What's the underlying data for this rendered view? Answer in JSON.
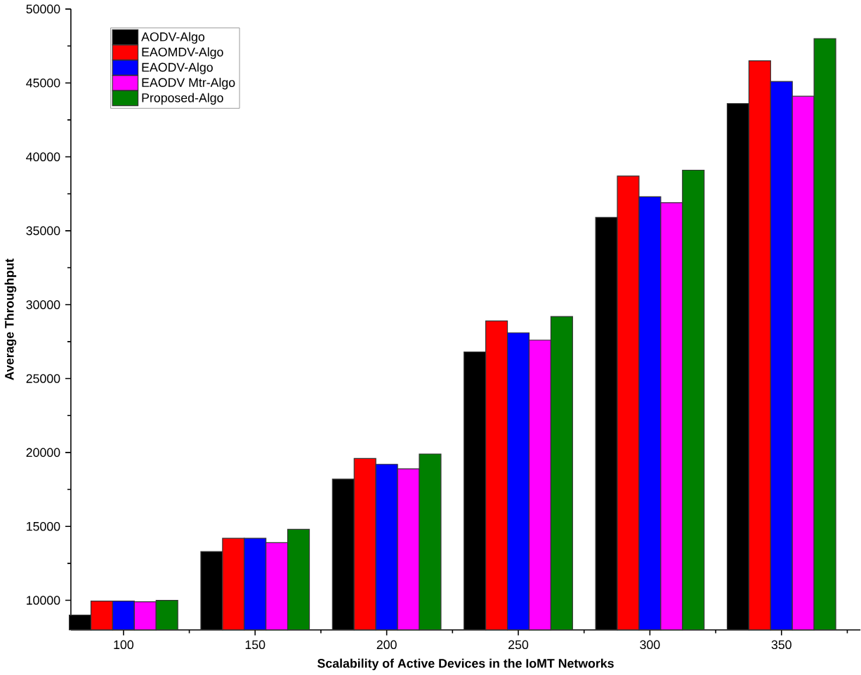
{
  "chart_data": {
    "type": "bar",
    "xlabel": "Scalability of Active Devices in the IoMT Networks",
    "ylabel": "Average Throughput",
    "categories": [
      "100",
      "150",
      "200",
      "250",
      "300",
      "350"
    ],
    "series": [
      {
        "name": "AODV-Algo",
        "color": "#000000",
        "values": [
          9000,
          13300,
          18200,
          26800,
          35900,
          43600
        ]
      },
      {
        "name": "EAOMDV-Algo",
        "color": "#ff0000",
        "values": [
          9950,
          14200,
          19600,
          28900,
          38700,
          46500
        ]
      },
      {
        "name": "EAODV-Algo",
        "color": "#0000ff",
        "values": [
          9950,
          14200,
          19200,
          28100,
          37300,
          45100
        ]
      },
      {
        "name": "EAODV Mtr-Algo",
        "color": "#ff00ff",
        "values": [
          9900,
          13900,
          18900,
          27600,
          36900,
          44100
        ]
      },
      {
        "name": "Proposed-Algo",
        "color": "#008000",
        "values": [
          10000,
          14800,
          19900,
          29200,
          39100,
          48000
        ]
      }
    ],
    "ylim": [
      8000,
      50000
    ],
    "yticks": [
      10000,
      15000,
      20000,
      25000,
      30000,
      35000,
      40000,
      45000,
      50000
    ],
    "grid": false,
    "legend": "top left"
  }
}
